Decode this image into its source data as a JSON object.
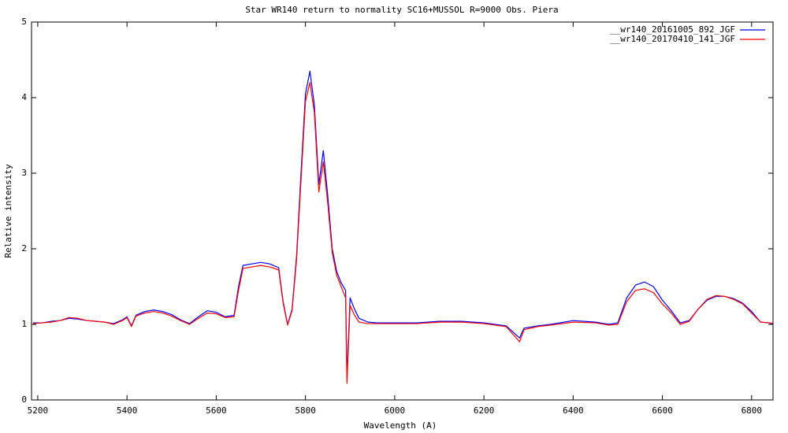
{
  "chart_data": {
    "type": "line",
    "title": "Star  WR140 return to normality  SC16+MUSSOL    R=9000  Obs. Piera",
    "x_label": "Wavelength (A)",
    "y_label": "Relative intensity",
    "xlim": [
      5186,
      6848
    ],
    "ylim": [
      0,
      5
    ],
    "xticks": [
      5200,
      5400,
      5600,
      5800,
      6000,
      6200,
      6400,
      6600,
      6800
    ],
    "yticks": [
      0,
      1,
      2,
      3,
      4,
      5
    ],
    "legend": "top-right",
    "x": [
      5190,
      5210,
      5230,
      5250,
      5270,
      5290,
      5310,
      5330,
      5350,
      5370,
      5390,
      5400,
      5410,
      5420,
      5440,
      5460,
      5480,
      5500,
      5520,
      5540,
      5560,
      5580,
      5600,
      5620,
      5640,
      5650,
      5660,
      5680,
      5700,
      5720,
      5740,
      5750,
      5760,
      5770,
      5780,
      5790,
      5800,
      5810,
      5820,
      5830,
      5840,
      5850,
      5860,
      5870,
      5880,
      5890,
      5893,
      5900,
      5910,
      5920,
      5940,
      5960,
      5980,
      6000,
      6050,
      6100,
      6150,
      6200,
      6250,
      6280,
      6290,
      6320,
      6350,
      6400,
      6450,
      6480,
      6500,
      6520,
      6540,
      6560,
      6580,
      6600,
      6620,
      6640,
      6660,
      6680,
      6700,
      6720,
      6740,
      6760,
      6780,
      6800,
      6820,
      6840,
      6848
    ],
    "series": [
      {
        "name": "__wr140_20161005_892_JGF",
        "color": "#0000ff",
        "values": [
          1.02,
          1.02,
          1.04,
          1.05,
          1.08,
          1.07,
          1.05,
          1.04,
          1.03,
          1.01,
          1.06,
          1.1,
          0.98,
          1.12,
          1.17,
          1.19,
          1.17,
          1.13,
          1.06,
          1.01,
          1.1,
          1.18,
          1.16,
          1.1,
          1.12,
          1.5,
          1.78,
          1.8,
          1.82,
          1.8,
          1.75,
          1.3,
          1.0,
          1.2,
          1.9,
          3.0,
          4.05,
          4.35,
          3.9,
          2.85,
          3.3,
          2.7,
          2.0,
          1.7,
          1.55,
          1.45,
          0.3,
          1.35,
          1.2,
          1.08,
          1.03,
          1.02,
          1.02,
          1.02,
          1.02,
          1.04,
          1.04,
          1.02,
          0.98,
          0.82,
          0.95,
          0.98,
          1.0,
          1.05,
          1.03,
          1.0,
          1.02,
          1.35,
          1.52,
          1.56,
          1.5,
          1.32,
          1.18,
          1.02,
          1.05,
          1.2,
          1.32,
          1.37,
          1.37,
          1.34,
          1.28,
          1.17,
          1.03,
          1.02,
          1.0
        ]
      },
      {
        "name": "__wr140_20170410_141_JGF",
        "color": "#ff0000",
        "values": [
          1.01,
          1.02,
          1.03,
          1.05,
          1.09,
          1.08,
          1.05,
          1.04,
          1.03,
          1.0,
          1.05,
          1.09,
          0.97,
          1.11,
          1.15,
          1.17,
          1.15,
          1.11,
          1.05,
          1.0,
          1.08,
          1.15,
          1.14,
          1.09,
          1.1,
          1.45,
          1.74,
          1.76,
          1.78,
          1.76,
          1.72,
          1.28,
          0.99,
          1.18,
          1.85,
          2.9,
          3.95,
          4.2,
          3.8,
          2.75,
          3.15,
          2.6,
          1.95,
          1.65,
          1.5,
          1.35,
          0.22,
          1.25,
          1.12,
          1.03,
          1.01,
          1.01,
          1.01,
          1.01,
          1.01,
          1.03,
          1.03,
          1.01,
          0.97,
          0.77,
          0.93,
          0.97,
          0.99,
          1.03,
          1.02,
          0.99,
          1.0,
          1.3,
          1.45,
          1.47,
          1.42,
          1.27,
          1.15,
          1.0,
          1.04,
          1.2,
          1.33,
          1.38,
          1.37,
          1.33,
          1.27,
          1.15,
          1.03,
          1.02,
          1.01
        ]
      }
    ]
  }
}
